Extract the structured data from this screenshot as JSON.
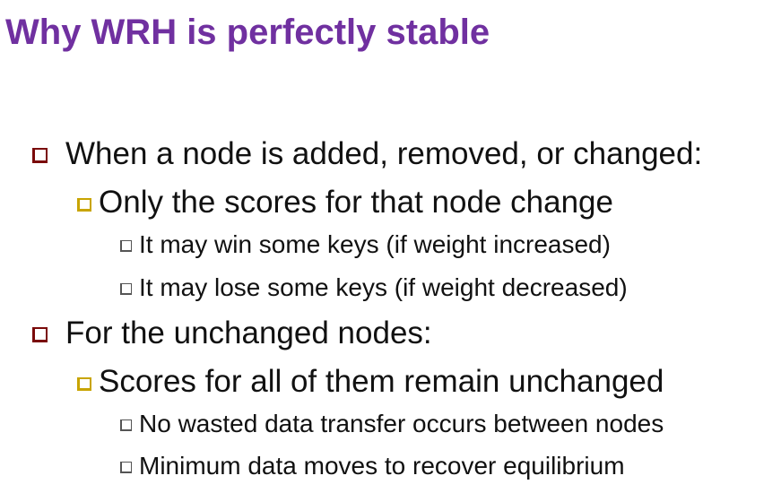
{
  "slide": {
    "title": "Why WRH is perfectly stable",
    "bullets": [
      {
        "text": "When a node is added, removed, or changed:",
        "children": [
          {
            "text": "Only the scores for that node change",
            "children": [
              {
                "text": "It may win some keys (if weight increased)"
              },
              {
                "text": "It may lose some keys (if weight decreased)"
              }
            ]
          }
        ]
      },
      {
        "text": "For the unchanged nodes:",
        "children": [
          {
            "text": "Scores for all of them remain unchanged",
            "children": [
              {
                "text": "No wasted data transfer occurs between nodes"
              },
              {
                "text": "Minimum data moves to recover equilibrium"
              }
            ]
          }
        ]
      }
    ]
  },
  "colors": {
    "title": "#7030a0",
    "text": "#111111",
    "bullet_level1": "#7a0a0a",
    "bullet_level2": "#c8a400",
    "bullet_level3": "#555555"
  }
}
